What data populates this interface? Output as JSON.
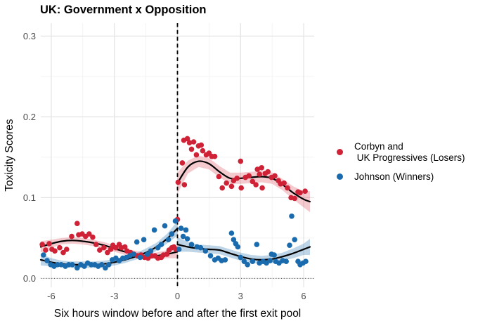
{
  "chart_data": {
    "type": "scatter",
    "title": "UK: Government x Opposition",
    "xlabel": "Six hours window before and after the first exit pool",
    "ylabel": "Toxicity Scores",
    "xlim": [
      -6.5,
      6.5
    ],
    "ylim": [
      -0.011,
      0.316
    ],
    "grid": true,
    "x_ticks": {
      "values": [
        -6,
        -3,
        0,
        3,
        6
      ],
      "labels": [
        "-6",
        "-3",
        "0",
        "3",
        "6"
      ]
    },
    "x_minor": [
      -4.5,
      -1.5,
      1.5,
      4.5
    ],
    "y_ticks": {
      "values": [
        0,
        0.1,
        0.2,
        0.3
      ],
      "labels": [
        "0.0",
        "0.1",
        "0.2",
        "0.3"
      ]
    },
    "y_minor": [
      0.05,
      0.15,
      0.25
    ],
    "reference_lines": {
      "vline_x": 0,
      "vline_style": "dashed",
      "hline_y": 0,
      "hline_style": "dotted"
    },
    "colors": {
      "major_grid": "#e3e3e3",
      "minor_grid": "#f0f0f0",
      "smooth_line": "#000000",
      "tick_label": "#4d4d4d"
    },
    "legend": {
      "position": "right",
      "entries": [
        {
          "label_lines": [
            "Corbyn and",
            " UK Progressives (Losers)"
          ],
          "color": "#CF2237"
        },
        {
          "label_lines": [
            "Johnson (Winners)"
          ],
          "color": "#1A6BAD"
        }
      ]
    },
    "series": [
      {
        "name": "Corbyn and UK Progressives (Losers)",
        "color": "#CF2237",
        "band_color": "rgba(213,42,65,0.25)",
        "points": [
          [
            -6.43,
            0.042
          ],
          [
            -6.27,
            0.035
          ],
          [
            -6.1,
            0.043
          ],
          [
            -5.97,
            0.036
          ],
          [
            -5.83,
            0.034
          ],
          [
            -5.6,
            0.038
          ],
          [
            -5.43,
            0.032
          ],
          [
            -5.27,
            0.036
          ],
          [
            -5.03,
            0.052
          ],
          [
            -4.77,
            0.068
          ],
          [
            -4.7,
            0.054
          ],
          [
            -4.53,
            0.055
          ],
          [
            -4.37,
            0.052
          ],
          [
            -4.2,
            0.055
          ],
          [
            -4.03,
            0.051
          ],
          [
            -3.87,
            0.042
          ],
          [
            -3.7,
            0.035
          ],
          [
            -3.5,
            0.038
          ],
          [
            -3.33,
            0.032
          ],
          [
            -3.17,
            0.036
          ],
          [
            -3.07,
            0.041
          ],
          [
            -2.93,
            0.038
          ],
          [
            -2.77,
            0.042
          ],
          [
            -2.67,
            0.038
          ],
          [
            -2.5,
            0.039
          ],
          [
            -2.4,
            0.034
          ],
          [
            -2.23,
            0.032
          ],
          [
            -2.07,
            0.03
          ],
          [
            -1.9,
            0.028
          ],
          [
            -1.73,
            0.029
          ],
          [
            -1.57,
            0.026
          ],
          [
            -1.4,
            0.025
          ],
          [
            -1.23,
            0.028
          ],
          [
            -1.07,
            0.028
          ],
          [
            -0.93,
            0.025
          ],
          [
            -0.77,
            0.026
          ],
          [
            -0.67,
            0.029
          ],
          [
            -0.5,
            0.03
          ],
          [
            -0.4,
            0.035
          ],
          [
            -0.27,
            0.038
          ],
          [
            -0.17,
            0.039
          ],
          [
            -0.07,
            0.036
          ],
          [
            0.0,
            0.073
          ],
          [
            0.03,
            0.119
          ],
          [
            0.23,
            0.143
          ],
          [
            0.3,
            0.171
          ],
          [
            0.33,
            0.116
          ],
          [
            0.47,
            0.173
          ],
          [
            0.57,
            0.168
          ],
          [
            0.67,
            0.16
          ],
          [
            0.77,
            0.169
          ],
          [
            0.9,
            0.153
          ],
          [
            1.0,
            0.164
          ],
          [
            1.13,
            0.165
          ],
          [
            1.2,
            0.158
          ],
          [
            1.37,
            0.153
          ],
          [
            1.5,
            0.155
          ],
          [
            1.63,
            0.151
          ],
          [
            1.77,
            0.151
          ],
          [
            1.97,
            0.126
          ],
          [
            2.13,
            0.112
          ],
          [
            2.33,
            0.118
          ],
          [
            2.57,
            0.114
          ],
          [
            2.67,
            0.121
          ],
          [
            2.83,
            0.124
          ],
          [
            3.0,
            0.145
          ],
          [
            3.03,
            0.112
          ],
          [
            3.23,
            0.125
          ],
          [
            3.4,
            0.127
          ],
          [
            3.57,
            0.12
          ],
          [
            3.73,
            0.116
          ],
          [
            3.8,
            0.135
          ],
          [
            3.9,
            0.129
          ],
          [
            4.0,
            0.137
          ],
          [
            4.03,
            0.112
          ],
          [
            4.17,
            0.13
          ],
          [
            4.3,
            0.132
          ],
          [
            4.47,
            0.125
          ],
          [
            4.63,
            0.127
          ],
          [
            4.8,
            0.121
          ],
          [
            4.9,
            0.117
          ],
          [
            5.07,
            0.118
          ],
          [
            5.23,
            0.112
          ],
          [
            5.4,
            0.1
          ],
          [
            5.57,
            0.099
          ],
          [
            5.73,
            0.107
          ],
          [
            5.83,
            0.106
          ],
          [
            6.07,
            0.108
          ]
        ],
        "smooths": [
          {
            "line": [
              [
                -6.5,
                0.039
              ],
              [
                -6.0,
                0.043
              ],
              [
                -5.5,
                0.046
              ],
              [
                -5.0,
                0.047
              ],
              [
                -4.5,
                0.046
              ],
              [
                -4.0,
                0.044
              ],
              [
                -3.5,
                0.041
              ],
              [
                -3.0,
                0.037
              ],
              [
                -2.5,
                0.033
              ],
              [
                -2.0,
                0.03
              ],
              [
                -1.5,
                0.028
              ],
              [
                -1.0,
                0.028
              ],
              [
                -0.5,
                0.03
              ],
              [
                0.0,
                0.033
              ]
            ],
            "band": [
              0.007,
              0.005,
              0.004,
              0.004,
              0.004,
              0.004,
              0.004,
              0.004,
              0.004,
              0.004,
              0.004,
              0.004,
              0.005,
              0.008
            ]
          },
          {
            "line": [
              [
                0.0,
                0.118
              ],
              [
                0.5,
                0.138
              ],
              [
                1.0,
                0.145
              ],
              [
                1.5,
                0.142
              ],
              [
                2.0,
                0.132
              ],
              [
                2.5,
                0.124
              ],
              [
                3.0,
                0.124
              ],
              [
                3.5,
                0.125
              ],
              [
                4.0,
                0.126
              ],
              [
                4.5,
                0.124
              ],
              [
                5.0,
                0.116
              ],
              [
                5.5,
                0.106
              ],
              [
                6.0,
                0.098
              ],
              [
                6.3,
                0.095
              ]
            ],
            "band": [
              0.013,
              0.008,
              0.007,
              0.007,
              0.007,
              0.007,
              0.007,
              0.007,
              0.007,
              0.007,
              0.007,
              0.008,
              0.01,
              0.013
            ]
          }
        ]
      },
      {
        "name": "Johnson (Winners)",
        "color": "#1A6BAD",
        "band_color": "rgba(38,115,176,0.30)",
        "points": [
          [
            -6.37,
            0.029
          ],
          [
            -6.2,
            0.022
          ],
          [
            -6.03,
            0.017
          ],
          [
            -5.87,
            0.015
          ],
          [
            -5.7,
            0.017
          ],
          [
            -5.53,
            0.017
          ],
          [
            -5.33,
            0.015
          ],
          [
            -5.17,
            0.017
          ],
          [
            -5.0,
            0.017
          ],
          [
            -4.77,
            0.013
          ],
          [
            -4.6,
            0.017
          ],
          [
            -4.43,
            0.015
          ],
          [
            -4.27,
            0.019
          ],
          [
            -4.1,
            0.017
          ],
          [
            -3.93,
            0.017
          ],
          [
            -3.77,
            0.015
          ],
          [
            -3.6,
            0.017
          ],
          [
            -3.43,
            0.013
          ],
          [
            -3.27,
            0.017
          ],
          [
            -3.1,
            0.023
          ],
          [
            -2.93,
            0.025
          ],
          [
            -2.77,
            0.022
          ],
          [
            -2.6,
            0.025
          ],
          [
            -2.43,
            0.026
          ],
          [
            -2.27,
            0.028
          ],
          [
            -2.1,
            0.03
          ],
          [
            -1.93,
            0.045
          ],
          [
            -1.77,
            0.026
          ],
          [
            -1.6,
            0.048
          ],
          [
            -1.43,
            0.03
          ],
          [
            -1.27,
            0.034
          ],
          [
            -1.1,
            0.06
          ],
          [
            -0.93,
            0.038
          ],
          [
            -0.77,
            0.042
          ],
          [
            -0.6,
            0.065
          ],
          [
            -0.43,
            0.048
          ],
          [
            -0.27,
            0.055
          ],
          [
            -0.1,
            0.071
          ],
          [
            0.07,
            0.036
          ],
          [
            0.17,
            0.062
          ],
          [
            0.27,
            0.052
          ],
          [
            0.4,
            0.06
          ],
          [
            0.47,
            0.049
          ],
          [
            0.67,
            0.042
          ],
          [
            0.93,
            0.039
          ],
          [
            1.1,
            0.038
          ],
          [
            1.33,
            0.034
          ],
          [
            1.57,
            0.028
          ],
          [
            1.77,
            0.023
          ],
          [
            1.93,
            0.025
          ],
          [
            2.1,
            0.022
          ],
          [
            2.27,
            0.023
          ],
          [
            2.57,
            0.056
          ],
          [
            2.67,
            0.048
          ],
          [
            2.77,
            0.043
          ],
          [
            2.87,
            0.039
          ],
          [
            3.0,
            0.026
          ],
          [
            3.17,
            0.021
          ],
          [
            3.33,
            0.017
          ],
          [
            3.57,
            0.021
          ],
          [
            3.77,
            0.042
          ],
          [
            3.9,
            0.019
          ],
          [
            4.07,
            0.021
          ],
          [
            4.23,
            0.019
          ],
          [
            4.4,
            0.022
          ],
          [
            4.47,
            0.03
          ],
          [
            4.6,
            0.029
          ],
          [
            4.67,
            0.021
          ],
          [
            4.83,
            0.019
          ],
          [
            5.0,
            0.022
          ],
          [
            5.17,
            0.021
          ],
          [
            5.33,
            0.041
          ],
          [
            5.43,
            0.077
          ],
          [
            5.57,
            0.048
          ],
          [
            5.73,
            0.021
          ],
          [
            5.83,
            0.017
          ],
          [
            5.97,
            0.019
          ],
          [
            6.1,
            0.021
          ]
        ],
        "smooths": [
          {
            "line": [
              [
                -6.5,
                0.023
              ],
              [
                -6.0,
                0.02
              ],
              [
                -5.5,
                0.018
              ],
              [
                -5.0,
                0.017
              ],
              [
                -4.5,
                0.017
              ],
              [
                -4.0,
                0.017
              ],
              [
                -3.5,
                0.018
              ],
              [
                -3.0,
                0.02
              ],
              [
                -2.5,
                0.023
              ],
              [
                -2.0,
                0.027
              ],
              [
                -1.5,
                0.032
              ],
              [
                -1.0,
                0.039
              ],
              [
                -0.5,
                0.049
              ],
              [
                0.0,
                0.062
              ]
            ],
            "band": [
              0.007,
              0.005,
              0.004,
              0.004,
              0.004,
              0.004,
              0.004,
              0.004,
              0.004,
              0.004,
              0.005,
              0.005,
              0.006,
              0.009
            ]
          },
          {
            "line": [
              [
                0.0,
                0.042
              ],
              [
                0.5,
                0.039
              ],
              [
                1.0,
                0.037
              ],
              [
                1.5,
                0.036
              ],
              [
                2.0,
                0.035
              ],
              [
                2.5,
                0.031
              ],
              [
                3.0,
                0.027
              ],
              [
                3.5,
                0.024
              ],
              [
                4.0,
                0.023
              ],
              [
                4.5,
                0.024
              ],
              [
                5.0,
                0.027
              ],
              [
                5.5,
                0.031
              ],
              [
                6.0,
                0.036
              ],
              [
                6.3,
                0.039
              ]
            ],
            "band": [
              0.009,
              0.006,
              0.005,
              0.005,
              0.005,
              0.005,
              0.005,
              0.005,
              0.005,
              0.005,
              0.005,
              0.006,
              0.007,
              0.01
            ]
          }
        ]
      }
    ]
  }
}
